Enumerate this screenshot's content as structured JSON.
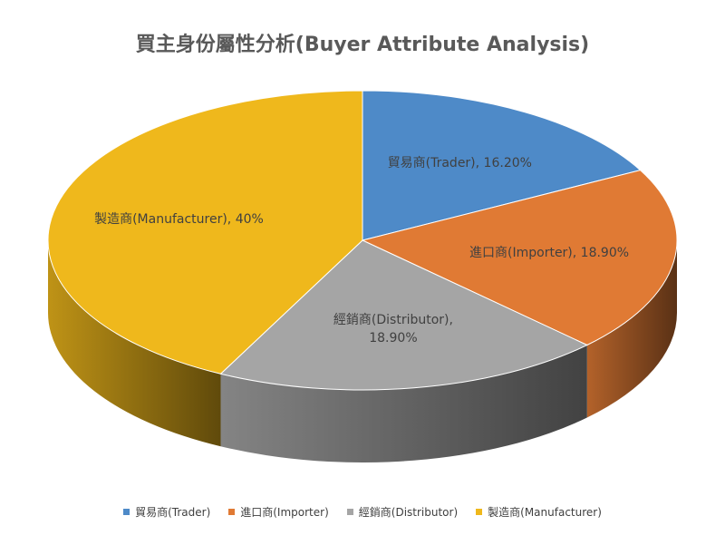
{
  "chart_data": {
    "type": "pie3d",
    "title": "買主身份屬性分析(Buyer Attribute  Analysis)",
    "categories": [
      "貿易商(Trader)",
      "進口商(Importer)",
      "經銷商(Distributor)",
      "製造商(Manufacturer)"
    ],
    "values": [
      16.2,
      18.9,
      18.9,
      40
    ],
    "value_labels": [
      "貿易商(Trader), 16.20%",
      "進口商(Importer), 18.90%",
      "經銷商(Distributor), 18.90%",
      "製造商(Manufacturer), 40%"
    ],
    "colors": [
      "#4e8ac8",
      "#e07a34",
      "#a5a5a5",
      "#efb81c"
    ],
    "legend": "bottom"
  }
}
